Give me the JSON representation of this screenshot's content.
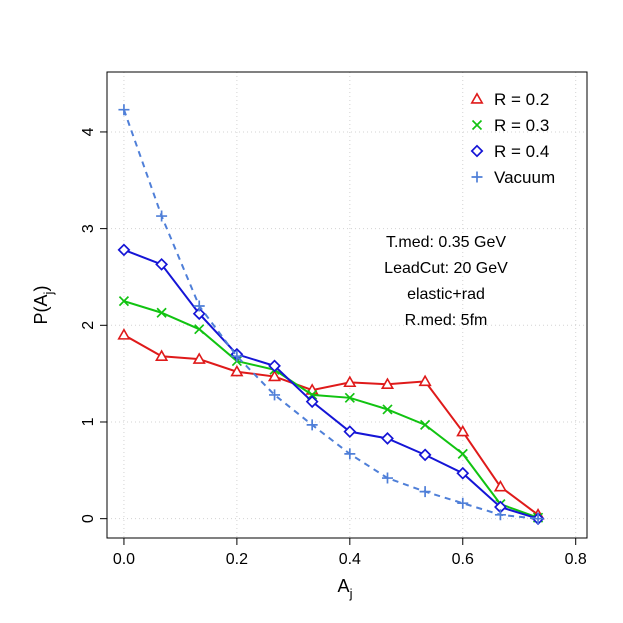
{
  "chart_data": {
    "type": "line",
    "xlabel_main": "A",
    "xlabel_sub": "j",
    "ylabel_main": "P(A",
    "ylabel_sub": "j",
    "ylabel_end": ")",
    "xlim": [
      -0.03,
      0.82
    ],
    "ylim": [
      -0.2,
      4.62
    ],
    "x_ticks": [
      0.0,
      0.2,
      0.4,
      0.6,
      0.8
    ],
    "x_tick_labels": [
      "0.0",
      "0.2",
      "0.4",
      "0.6",
      "0.8"
    ],
    "y_ticks": [
      0,
      1,
      2,
      3,
      4
    ],
    "y_tick_labels": [
      "0",
      "1",
      "2",
      "3",
      "4"
    ],
    "grid": true,
    "legend_position": "top-right",
    "x": [
      0.0,
      0.0667,
      0.1333,
      0.2,
      0.2667,
      0.3333,
      0.4,
      0.4667,
      0.5333,
      0.6,
      0.6667,
      0.7333
    ],
    "series": [
      {
        "name": "R = 0.2",
        "color": "#df1a1a",
        "marker": "triangle",
        "dashed": false,
        "values": [
          1.9,
          1.68,
          1.65,
          1.52,
          1.47,
          1.33,
          1.41,
          1.39,
          1.42,
          0.9,
          0.33,
          0.04
        ]
      },
      {
        "name": "R = 0.3",
        "color": "#11c311",
        "marker": "x",
        "dashed": false,
        "values": [
          2.25,
          2.13,
          1.96,
          1.63,
          1.54,
          1.28,
          1.25,
          1.13,
          0.97,
          0.67,
          0.15,
          0.01
        ]
      },
      {
        "name": "R = 0.4",
        "color": "#1515d6",
        "marker": "diamond",
        "dashed": false,
        "values": [
          2.78,
          2.63,
          2.12,
          1.7,
          1.58,
          1.21,
          0.9,
          0.83,
          0.66,
          0.47,
          0.12,
          0.0
        ]
      },
      {
        "name": "Vacuum",
        "color": "#4f7fd8",
        "marker": "plus",
        "dashed": true,
        "values": [
          4.23,
          3.13,
          2.2,
          1.68,
          1.28,
          0.97,
          0.67,
          0.42,
          0.28,
          0.16,
          0.04,
          0.0
        ]
      }
    ],
    "annotations": [
      "T.med: 0.35 GeV",
      "LeadCut: 20 GeV",
      "elastic+rad",
      "R.med: 5fm"
    ]
  }
}
